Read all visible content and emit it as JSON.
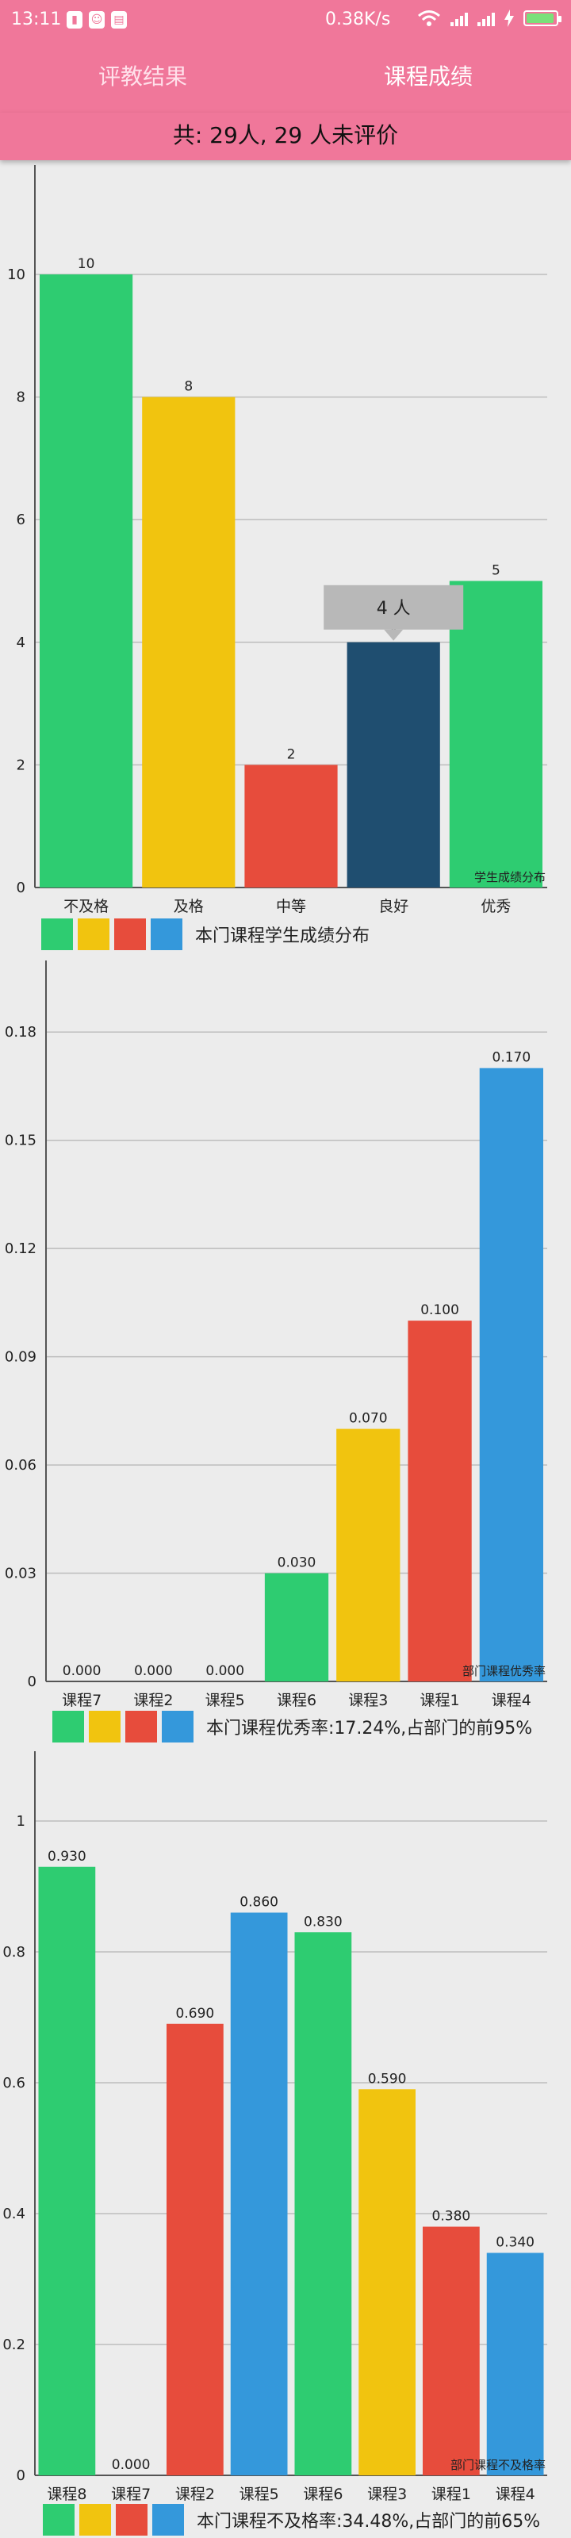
{
  "status_bar": {
    "time": "13:11",
    "network_speed": "0.38K/s",
    "icons": [
      "battery-status-icon",
      "qq-icon",
      "printer-icon",
      "wifi-icon",
      "signal-icon",
      "signal-icon",
      "charging-icon",
      "battery-icon"
    ]
  },
  "tabs": [
    {
      "label": "评教结果",
      "active": false
    },
    {
      "label": "课程成绩",
      "active": true
    }
  ],
  "summary": "共: 29人, 29 人未评价",
  "colors": {
    "header": "#f0779a",
    "green": "#2ecc71",
    "yellow": "#f1c40f",
    "red": "#e74c3c",
    "navy": "#1f4e70",
    "blue": "#3498db",
    "grid": "#bdbdbd"
  },
  "chart_data": [
    {
      "type": "bar",
      "categories": [
        "不及格",
        "及格",
        "中等",
        "良好",
        "优秀"
      ],
      "values": [
        10,
        8,
        2,
        4,
        5
      ],
      "value_labels": [
        "10",
        "8",
        "2",
        "4",
        "5"
      ],
      "bar_colors": [
        "#2ecc71",
        "#f1c40f",
        "#e74c3c",
        "#1f4e70",
        "#2ecc71"
      ],
      "ylim": [
        0,
        11.5
      ],
      "yticks": [
        "0",
        "2",
        "4",
        "6",
        "8",
        "10"
      ],
      "ytick_values": [
        0,
        2,
        4,
        6,
        8,
        10
      ],
      "description": "学生成绩分布",
      "tooltip": {
        "text": "4 人",
        "category": "良好"
      },
      "legend_colors": [
        "#2ecc71",
        "#f1c40f",
        "#e74c3c",
        "#3498db"
      ],
      "legend_label": "本门课程学生成绩分布",
      "grid": true
    },
    {
      "type": "bar",
      "categories": [
        "课程7",
        "课程2",
        "课程5",
        "课程6",
        "课程3",
        "课程1",
        "课程4"
      ],
      "values": [
        0.0,
        0.0,
        0.0,
        0.03,
        0.07,
        0.1,
        0.17
      ],
      "value_labels": [
        "0.000",
        "0.000",
        "0.000",
        "0.030",
        "0.070",
        "0.100",
        "0.170"
      ],
      "bar_colors": [
        "#2ecc71",
        "#f1c40f",
        "#e74c3c",
        "#2ecc71",
        "#f1c40f",
        "#e74c3c",
        "#3498db"
      ],
      "ylim": [
        0,
        0.195
      ],
      "yticks": [
        "0",
        "0.03",
        "0.06",
        "0.09",
        "0.12",
        "0.15",
        "0.18"
      ],
      "ytick_values": [
        0,
        0.03,
        0.06,
        0.09,
        0.12,
        0.15,
        0.18
      ],
      "description": "部门课程优秀率",
      "legend_colors": [
        "#2ecc71",
        "#f1c40f",
        "#e74c3c",
        "#3498db"
      ],
      "legend_label": "本门课程优秀率:17.24%,占部门的前95%",
      "grid": true
    },
    {
      "type": "bar",
      "categories": [
        "课程8",
        "课程7",
        "课程2",
        "课程5",
        "课程6",
        "课程3",
        "课程1",
        "课程4"
      ],
      "values": [
        0.93,
        0.0,
        0.69,
        0.86,
        0.83,
        0.59,
        0.38,
        0.34
      ],
      "value_labels": [
        "0.930",
        "0.000",
        "0.690",
        "0.860",
        "0.830",
        "0.590",
        "0.380",
        "0.340"
      ],
      "bar_colors": [
        "#2ecc71",
        "#f1c40f",
        "#e74c3c",
        "#3498db",
        "#2ecc71",
        "#f1c40f",
        "#e74c3c",
        "#3498db"
      ],
      "ylim": [
        0,
        1.08
      ],
      "yticks": [
        "0",
        "0.2",
        "0.4",
        "0.6",
        "0.8",
        "1"
      ],
      "ytick_values": [
        0,
        0.2,
        0.4,
        0.6,
        0.8,
        1.0
      ],
      "description": "部门课程不及格率",
      "legend_colors": [
        "#2ecc71",
        "#f1c40f",
        "#e74c3c",
        "#3498db"
      ],
      "legend_label": "本门课程不及格率:34.48%,占部门的前65%",
      "grid": true
    }
  ]
}
